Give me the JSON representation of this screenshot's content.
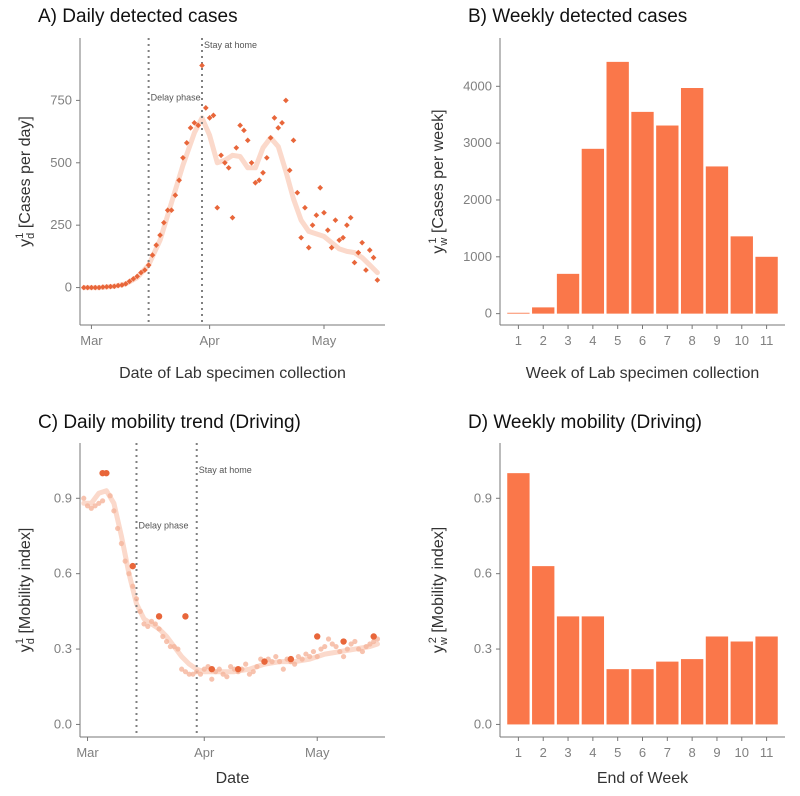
{
  "chart_data": [
    {
      "id": "A",
      "type": "scatter",
      "title": "A) Daily detected cases",
      "ylabel_main": "y",
      "ylabel_sub": "d",
      "ylabel_sup": "1",
      "ylabel_rest": "  [Cases per day]",
      "xlabel": "Date of Lab specimen collection",
      "xlim": [
        0,
        80
      ],
      "ylim": [
        -150,
        1000
      ],
      "yticks": [
        0,
        250,
        500,
        750
      ],
      "ytick_labels": [
        "0",
        "250",
        "500",
        "750"
      ],
      "xticks": [
        3,
        34,
        64
      ],
      "xtick_labels": [
        "Mar",
        "Apr",
        "May"
      ],
      "annotations": [
        {
          "x": 18,
          "label": "Delay phase",
          "label_y": 750
        },
        {
          "x": 32,
          "label": "Stay at home",
          "label_y": 960
        }
      ],
      "points_x": [
        1,
        2,
        3,
        4,
        5,
        6,
        7,
        8,
        9,
        10,
        11,
        12,
        13,
        14,
        15,
        16,
        17,
        18,
        19,
        20,
        21,
        22,
        23,
        24,
        25,
        26,
        27,
        28,
        29,
        30,
        31,
        32,
        33,
        34,
        35,
        36,
        37,
        38,
        39,
        40,
        41,
        42,
        43,
        44,
        45,
        46,
        47,
        48,
        49,
        50,
        51,
        52,
        53,
        54,
        55,
        56,
        57,
        58,
        59,
        60,
        61,
        62,
        63,
        64,
        65,
        66,
        67,
        68,
        69,
        70,
        71,
        72,
        73,
        74,
        75,
        76,
        77,
        78
      ],
      "points_y": [
        0,
        0,
        0,
        0,
        0,
        2,
        3,
        4,
        5,
        8,
        10,
        15,
        25,
        35,
        45,
        60,
        70,
        90,
        130,
        170,
        210,
        260,
        310,
        310,
        370,
        430,
        520,
        580,
        640,
        660,
        650,
        890,
        720,
        680,
        690,
        320,
        530,
        500,
        480,
        280,
        560,
        650,
        630,
        590,
        500,
        420,
        430,
        460,
        520,
        600,
        680,
        640,
        660,
        750,
        470,
        590,
        380,
        200,
        320,
        160,
        250,
        290,
        400,
        300,
        230,
        160,
        270,
        190,
        200,
        250,
        280,
        100,
        140,
        180,
        70,
        150,
        120,
        30
      ],
      "trend_x": [
        1,
        5,
        9,
        12,
        15,
        18,
        21,
        24,
        27,
        30,
        32,
        34,
        36,
        38,
        40,
        42,
        44,
        46,
        48,
        50,
        52,
        54,
        56,
        58,
        60,
        62,
        64,
        66,
        68,
        70,
        72,
        74,
        76,
        78
      ],
      "trend_y": [
        0,
        0,
        5,
        15,
        40,
        90,
        190,
        340,
        490,
        620,
        680,
        610,
        500,
        510,
        530,
        525,
        480,
        480,
        560,
        600,
        565,
        465,
        355,
        270,
        225,
        215,
        205,
        180,
        155,
        145,
        140,
        120,
        90,
        60
      ]
    },
    {
      "id": "B",
      "type": "bar",
      "title": "B) Weekly detected cases",
      "ylabel_main": "y",
      "ylabel_sub": "w",
      "ylabel_sup": "1",
      "ylabel_rest": "  [Cases per week]",
      "xlabel": "Week of Lab specimen collection",
      "categories": [
        "1",
        "2",
        "3",
        "4",
        "5",
        "6",
        "7",
        "8",
        "9",
        "10",
        "11"
      ],
      "values": [
        15,
        110,
        700,
        2900,
        4430,
        3550,
        3310,
        3970,
        2590,
        1360,
        1000
      ],
      "ylim": [
        -200,
        4850
      ],
      "yticks": [
        0,
        1000,
        2000,
        3000,
        4000
      ],
      "ytick_labels": [
        "0",
        "1000",
        "2000",
        "3000",
        "4000"
      ]
    },
    {
      "id": "C",
      "type": "scatter",
      "title": "C) Daily mobility trend (Driving)",
      "ylabel_main": "y",
      "ylabel_sub": "d",
      "ylabel_sup": "1",
      "ylabel_rest": "  [Mobility index]",
      "xlabel": "Date",
      "xlim": [
        -1,
        80
      ],
      "ylim": [
        -0.05,
        1.12
      ],
      "yticks": [
        0.0,
        0.3,
        0.6,
        0.9
      ],
      "ytick_labels": [
        "0.0",
        "0.3",
        "0.6",
        "0.9"
      ],
      "xticks": [
        1,
        32,
        62
      ],
      "xtick_labels": [
        "Mar",
        "Apr",
        "May"
      ],
      "annotations": [
        {
          "x": 14,
          "label": "Delay phase",
          "label_y": 0.78
        },
        {
          "x": 30,
          "label": "Stay at home",
          "label_y": 1.0
        }
      ],
      "points_x": [
        0,
        1,
        2,
        3,
        4,
        5,
        6,
        7,
        8,
        9,
        10,
        11,
        12,
        13,
        14,
        15,
        16,
        17,
        18,
        19,
        20,
        21,
        22,
        23,
        24,
        25,
        26,
        27,
        28,
        29,
        30,
        31,
        32,
        33,
        34,
        35,
        36,
        37,
        38,
        39,
        40,
        41,
        42,
        43,
        44,
        45,
        46,
        47,
        48,
        49,
        50,
        51,
        52,
        53,
        54,
        55,
        56,
        57,
        58,
        59,
        60,
        61,
        62,
        63,
        64,
        65,
        66,
        67,
        68,
        69,
        70,
        71,
        72,
        73,
        74,
        75,
        76,
        77,
        78
      ],
      "points_y": [
        0.9,
        0.87,
        0.86,
        0.87,
        0.88,
        0.89,
        1.0,
        0.91,
        0.85,
        0.78,
        0.72,
        0.65,
        0.6,
        0.55,
        0.5,
        0.45,
        0.4,
        0.39,
        0.41,
        0.4,
        0.38,
        0.35,
        0.33,
        0.31,
        0.31,
        0.3,
        0.22,
        0.21,
        0.2,
        0.2,
        0.21,
        0.2,
        0.22,
        0.23,
        0.18,
        0.21,
        0.22,
        0.2,
        0.19,
        0.23,
        0.22,
        0.21,
        0.22,
        0.24,
        0.2,
        0.21,
        0.23,
        0.26,
        0.25,
        0.26,
        0.25,
        0.27,
        0.25,
        0.22,
        0.26,
        0.25,
        0.24,
        0.27,
        0.26,
        0.28,
        0.27,
        0.29,
        0.27,
        0.3,
        0.31,
        0.34,
        0.32,
        0.31,
        0.29,
        0.27,
        0.3,
        0.32,
        0.33,
        0.3,
        0.29,
        0.31,
        0.32,
        0.33,
        0.34
      ],
      "trend_x": [
        0,
        2,
        4,
        6,
        8,
        10,
        12,
        14,
        16,
        18,
        20,
        22,
        24,
        26,
        28,
        30,
        32,
        34,
        36,
        40,
        44,
        48,
        52,
        56,
        60,
        64,
        68,
        72,
        76,
        78
      ],
      "trend_y": [
        0.88,
        0.88,
        0.92,
        0.93,
        0.88,
        0.75,
        0.6,
        0.48,
        0.42,
        0.4,
        0.38,
        0.35,
        0.31,
        0.27,
        0.24,
        0.22,
        0.21,
        0.21,
        0.21,
        0.21,
        0.22,
        0.24,
        0.25,
        0.25,
        0.26,
        0.28,
        0.29,
        0.3,
        0.31,
        0.32
      ],
      "highlight_x": [
        5,
        6,
        13,
        20,
        27,
        34,
        41,
        48,
        55,
        62,
        69,
        77
      ],
      "highlight_y": [
        1.0,
        1.0,
        0.63,
        0.43,
        0.43,
        0.22,
        0.22,
        0.25,
        0.26,
        0.35,
        0.33,
        0.35
      ]
    },
    {
      "id": "D",
      "type": "bar",
      "title": "D) Weekly mobility (Driving)",
      "ylabel_main": "y",
      "ylabel_sub": "w",
      "ylabel_sup": "2",
      "ylabel_rest": "  [Mobility index]",
      "xlabel": "End of Week",
      "categories": [
        "1",
        "2",
        "3",
        "4",
        "5",
        "6",
        "7",
        "8",
        "9",
        "10",
        "11"
      ],
      "values": [
        1.0,
        0.63,
        0.43,
        0.43,
        0.22,
        0.22,
        0.25,
        0.26,
        0.35,
        0.33,
        0.35
      ],
      "ylim": [
        -0.05,
        1.12
      ],
      "yticks": [
        0.0,
        0.3,
        0.6,
        0.9
      ],
      "ytick_labels": [
        "0.0",
        "0.3",
        "0.6",
        "0.9"
      ]
    }
  ],
  "colors": {
    "point": "#e8663a",
    "point_light": "#f5b49b",
    "trend": "#fbd9cb",
    "bar": "#fa774a"
  }
}
